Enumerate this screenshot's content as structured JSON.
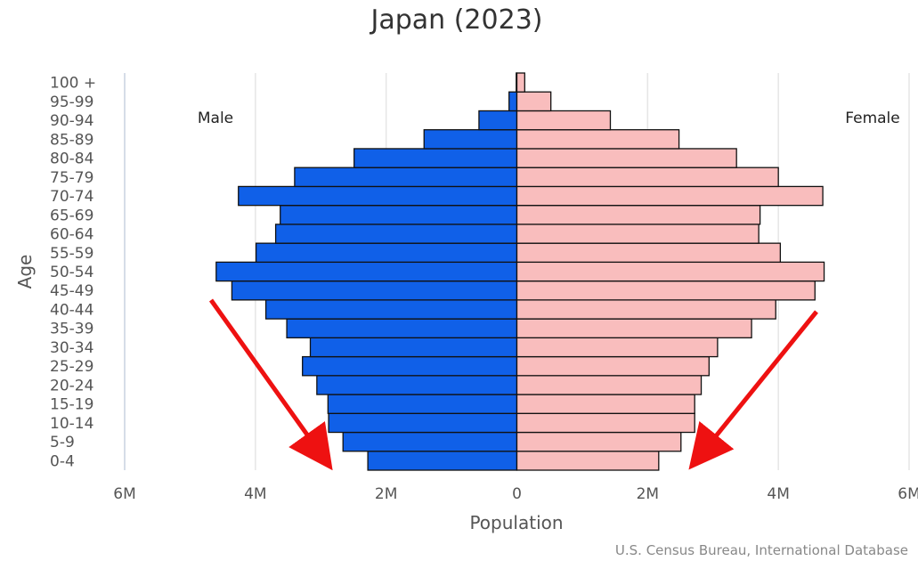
{
  "chart_data": {
    "type": "bar",
    "orientation": "horizontal-population-pyramid",
    "title": "Japan (2023)",
    "xlabel": "Population",
    "ylabel": "Age",
    "credit": "U.S. Census Bureau, International Database",
    "side_labels": {
      "left": "Male",
      "right": "Female"
    },
    "x_ticks": [
      "6M",
      "4M",
      "2M",
      "0",
      "2M",
      "4M",
      "6M"
    ],
    "xlim": [
      -6000000,
      6000000
    ],
    "grid": true,
    "categories": [
      "0-4",
      "5-9",
      "10-14",
      "15-19",
      "20-24",
      "25-29",
      "30-34",
      "35-39",
      "40-44",
      "45-49",
      "50-54",
      "55-59",
      "60-64",
      "65-69",
      "70-74",
      "75-79",
      "80-84",
      "85-89",
      "90-94",
      "95-99",
      "100 +"
    ],
    "series": [
      {
        "name": "Male",
        "color": "#1060e8",
        "values": [
          2280000,
          2660000,
          2880000,
          2890000,
          3060000,
          3280000,
          3160000,
          3520000,
          3840000,
          4360000,
          4600000,
          3990000,
          3690000,
          3620000,
          4260000,
          3400000,
          2490000,
          1420000,
          580000,
          120000,
          10000
        ]
      },
      {
        "name": "Female",
        "color": "#f9bdbd",
        "values": [
          2170000,
          2510000,
          2720000,
          2720000,
          2820000,
          2940000,
          3070000,
          3590000,
          3960000,
          4560000,
          4700000,
          4030000,
          3700000,
          3720000,
          4680000,
          4000000,
          3360000,
          2480000,
          1430000,
          520000,
          120000
        ]
      }
    ],
    "annotations": [
      {
        "type": "arrow",
        "color": "#ee1111",
        "description": "red arrow pointing down toward youngest male bars"
      },
      {
        "type": "arrow",
        "color": "#ee1111",
        "description": "red arrow pointing down toward youngest female bars"
      }
    ]
  }
}
